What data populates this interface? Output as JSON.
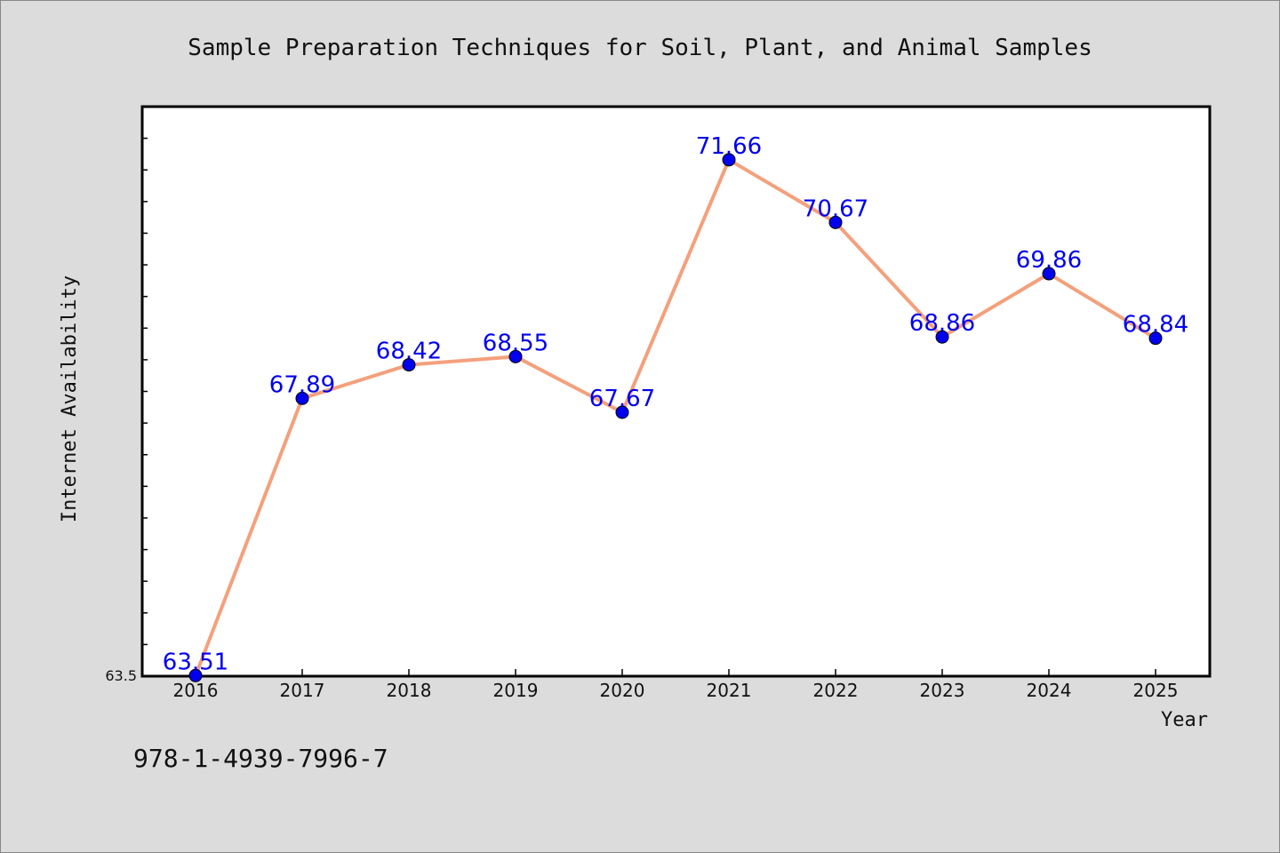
{
  "chart_data": {
    "type": "line",
    "title": "Sample Preparation Techniques for Soil, Plant, and Animal Samples",
    "xlabel": "Year",
    "ylabel": "Internet Availability",
    "categories": [
      "2016",
      "2017",
      "2018",
      "2019",
      "2020",
      "2021",
      "2022",
      "2023",
      "2024",
      "2025"
    ],
    "series": [
      {
        "values": [
          63.51,
          67.89,
          68.42,
          68.55,
          67.67,
          71.66,
          70.67,
          68.86,
          69.86,
          68.84
        ],
        "labels": [
          "63.51",
          "67.89",
          "68.42",
          "68.55",
          "67.67",
          "71.66",
          "70.67",
          "68.86",
          "69.86",
          "68.84"
        ]
      }
    ],
    "ylim": [
      63.5,
      72.5
    ],
    "yticks_labeled": [
      "63.5"
    ],
    "grid": false,
    "legend": "none",
    "colors": {
      "line": "#f4a07c",
      "marker": "#0000ee",
      "data_label": "#0000ee",
      "background": "#dcdcdc",
      "plot_background": "#ffffff"
    }
  },
  "footnote": "978-1-4939-7996-7"
}
